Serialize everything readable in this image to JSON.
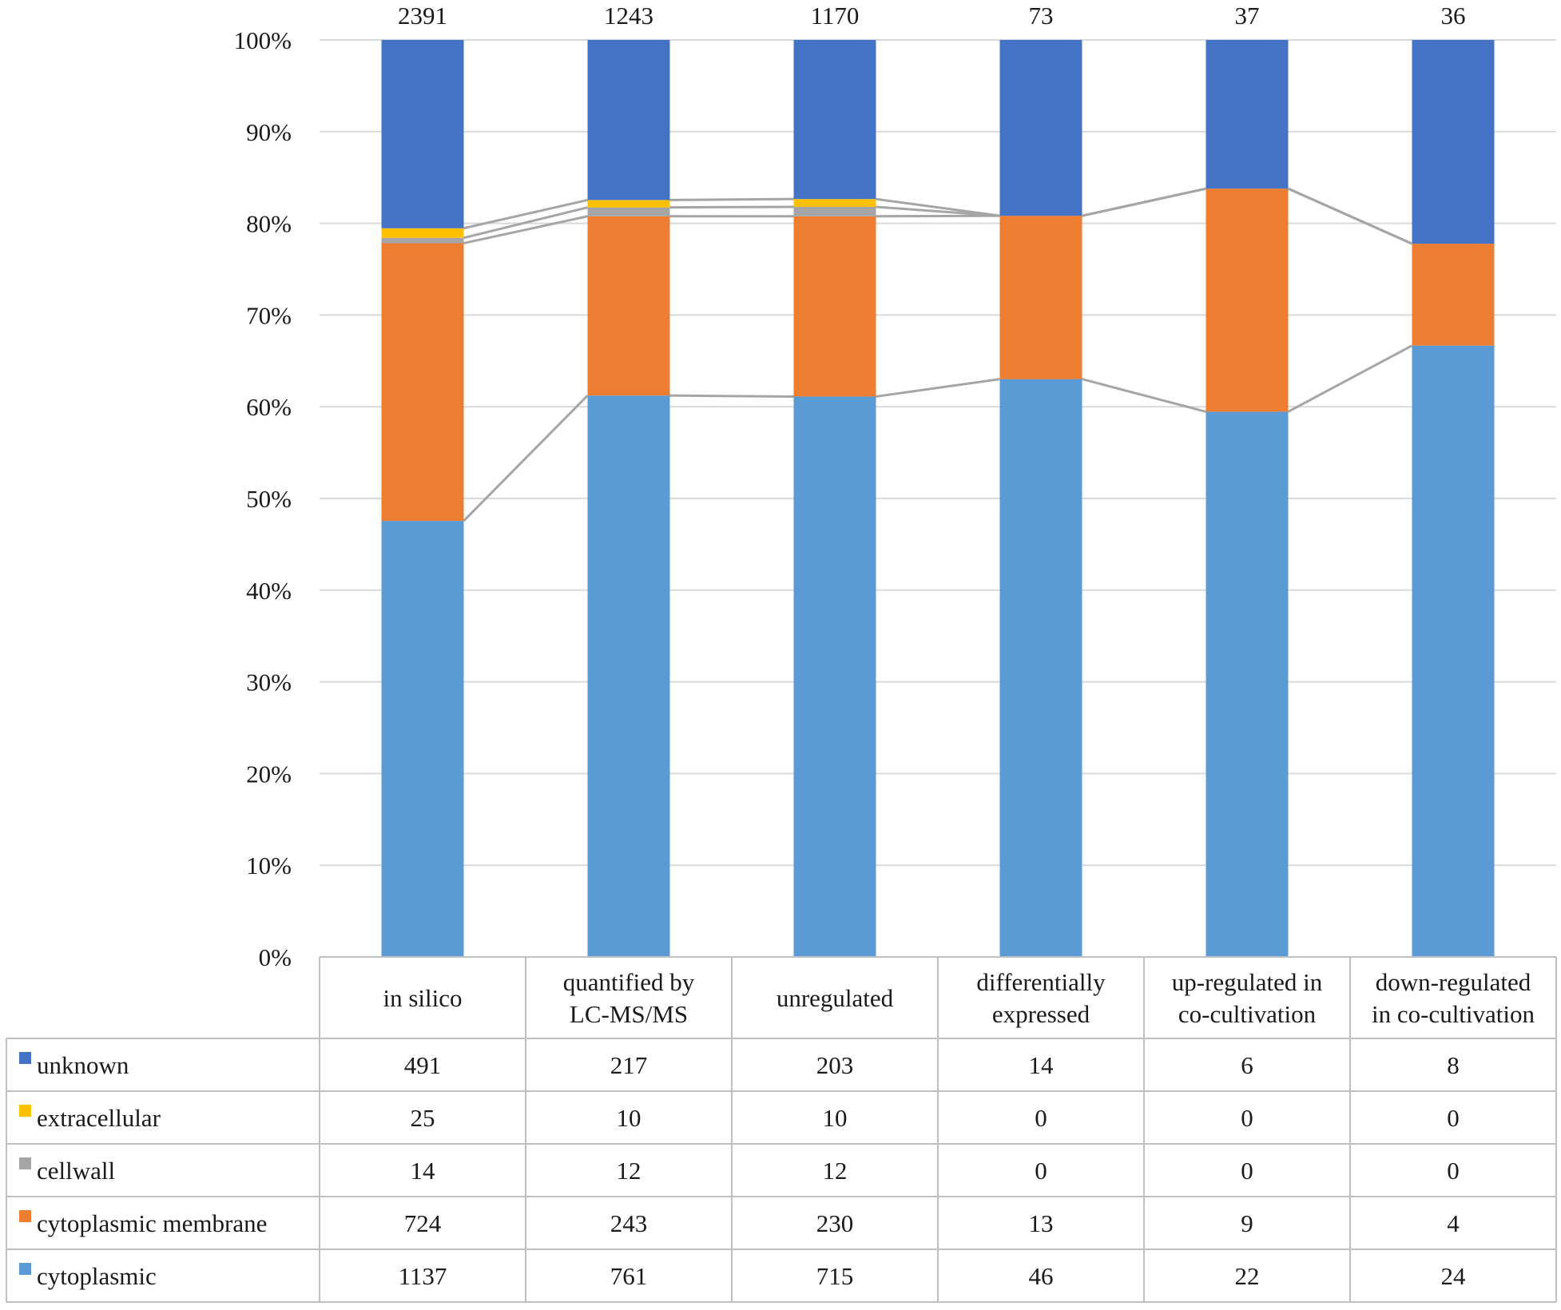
{
  "chart_data": {
    "type": "bar",
    "stacked": "percent",
    "categories": [
      [
        "in silico"
      ],
      [
        "quantified by",
        "LC-MS/MS"
      ],
      [
        "unregulated"
      ],
      [
        "differentially",
        "expressed"
      ],
      [
        "up-regulated in",
        "co-cultivation"
      ],
      [
        "down-regulated",
        "in co-cultivation"
      ]
    ],
    "totals": [
      "2391",
      "1243",
      "1170",
      "73",
      "37",
      "36"
    ],
    "y_ticks": [
      "0%",
      "10%",
      "20%",
      "30%",
      "40%",
      "50%",
      "60%",
      "70%",
      "80%",
      "90%",
      "100%"
    ],
    "ylim": [
      0,
      100
    ],
    "stack_order": [
      "cytoplasmic",
      "cytoplasmic membrane",
      "cellwall",
      "extracellular",
      "unknown"
    ],
    "series": [
      {
        "name": "unknown",
        "color": "#4472C4",
        "values": [
          491,
          217,
          203,
          14,
          6,
          8
        ]
      },
      {
        "name": "extracellular",
        "color": "#FFC000",
        "values": [
          25,
          10,
          10,
          0,
          0,
          0
        ]
      },
      {
        "name": "cellwall",
        "color": "#A5A5A5",
        "values": [
          14,
          12,
          12,
          0,
          0,
          0
        ]
      },
      {
        "name": "cytoplasmic membrane",
        "color": "#ED7D31",
        "values": [
          724,
          243,
          230,
          13,
          9,
          4
        ]
      },
      {
        "name": "cytoplasmic",
        "color": "#5B9BD5",
        "values": [
          1137,
          761,
          715,
          46,
          22,
          24
        ]
      }
    ],
    "series_lines": true,
    "legend": "data-table"
  }
}
